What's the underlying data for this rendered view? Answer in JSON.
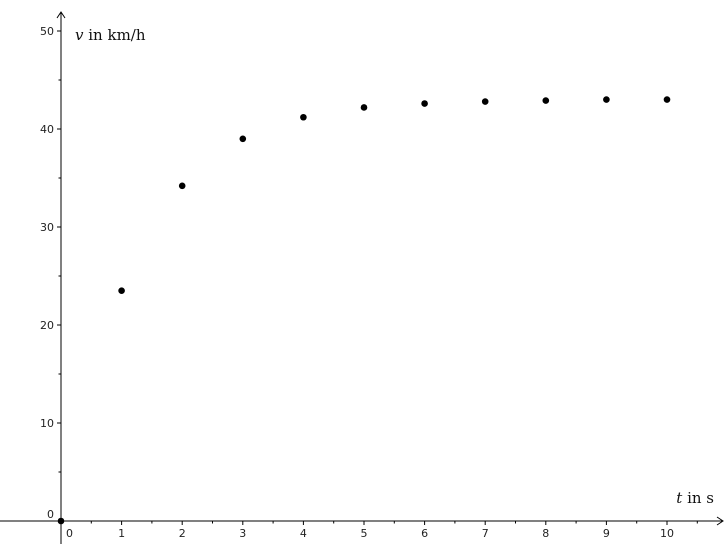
{
  "chart_data": {
    "type": "scatter",
    "title": "",
    "xlabel": {
      "var": "t",
      "unit": " in s"
    },
    "ylabel": {
      "var": "v",
      "unit": " in km/h"
    },
    "xlim": [
      0,
      10.8
    ],
    "ylim": [
      0,
      50
    ],
    "x_ticks": [
      0,
      1,
      2,
      3,
      4,
      5,
      6,
      7,
      8,
      9,
      10
    ],
    "y_ticks": [
      0,
      10,
      20,
      30,
      40,
      50
    ],
    "grid": false,
    "legend": "none",
    "point_color": "#000000",
    "series": [
      {
        "x": [
          0,
          1,
          2,
          3,
          4,
          5,
          6,
          7,
          8,
          9,
          10
        ],
        "y": [
          0,
          23.5,
          34.2,
          39.0,
          41.2,
          42.2,
          42.6,
          42.8,
          42.9,
          43.0,
          43.0
        ]
      }
    ]
  }
}
